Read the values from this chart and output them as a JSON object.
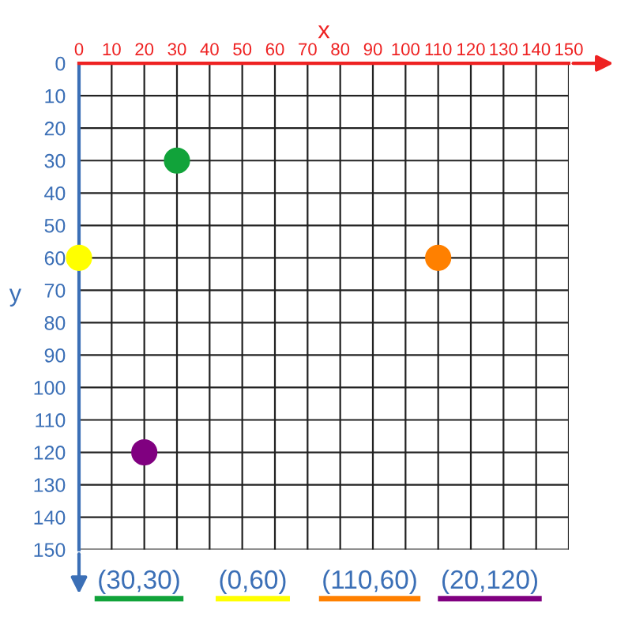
{
  "chart_data": {
    "type": "scatter",
    "xlabel": "x",
    "ylabel": "y",
    "x": [
      30,
      0,
      110,
      20
    ],
    "series": [
      {
        "colors": [
          "#11a33a",
          "#ffff00",
          "#ff8000",
          "#800080"
        ],
        "values": [
          30,
          60,
          60,
          120
        ]
      }
    ],
    "xlim": [
      0,
      150
    ],
    "xticks": [
      0,
      10,
      20,
      30,
      40,
      50,
      60,
      70,
      80,
      90,
      100,
      110,
      120,
      130,
      140,
      150
    ],
    "ylim": [
      150,
      0
    ],
    "yticks": [
      0,
      10,
      20,
      30,
      40,
      50,
      60,
      70,
      80,
      90,
      100,
      110,
      120,
      130,
      140,
      150
    ],
    "grid": true,
    "marker": "circle",
    "annotations": [
      "(30,30)",
      "(0,60)",
      "(110,60)",
      "(20,120)"
    ]
  }
}
